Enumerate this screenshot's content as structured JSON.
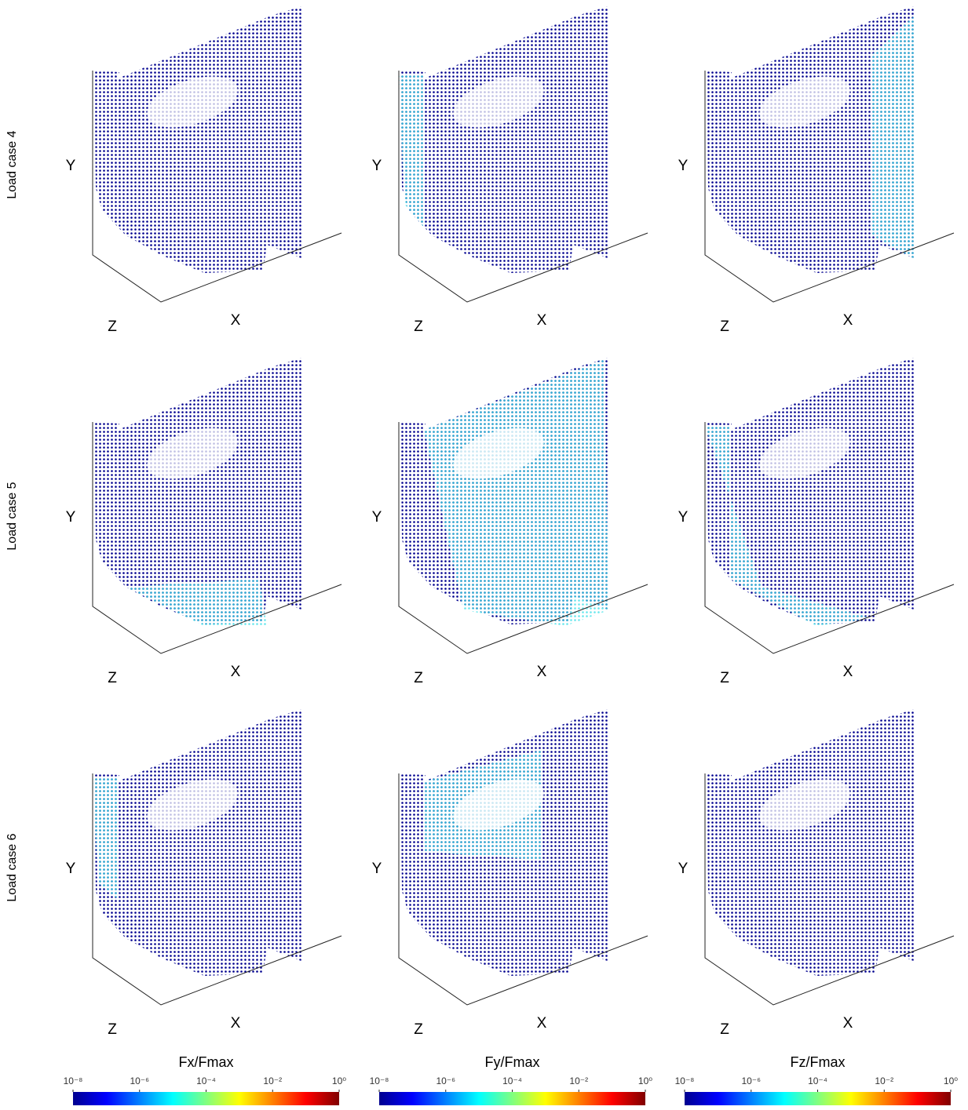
{
  "figure": {
    "rows": [
      "Load case 4",
      "Load case 5",
      "Load case 6"
    ],
    "axis_labels": {
      "x": "X",
      "y": "Y",
      "z": "Z"
    },
    "colorbars": [
      {
        "title": "Fx/Fmax",
        "scale": "log",
        "lim": [
          1e-08,
          1
        ],
        "ticks": [
          {
            "value": 1e-08,
            "label": "10⁻⁸"
          },
          {
            "value": 1e-06,
            "label": "10⁻⁶"
          },
          {
            "value": 0.0001,
            "label": "10⁻⁴"
          },
          {
            "value": 0.01,
            "label": "10⁻²"
          },
          {
            "value": 1,
            "label": "10⁰"
          }
        ]
      },
      {
        "title": "Fy/Fmax",
        "scale": "log",
        "lim": [
          1e-08,
          1
        ],
        "ticks": [
          {
            "value": 1e-08,
            "label": "10⁻⁸"
          },
          {
            "value": 1e-06,
            "label": "10⁻⁶"
          },
          {
            "value": 0.0001,
            "label": "10⁻⁴"
          },
          {
            "value": 0.01,
            "label": "10⁻²"
          },
          {
            "value": 1,
            "label": "10⁰"
          }
        ]
      },
      {
        "title": "Fz/Fmax",
        "scale": "log",
        "lim": [
          1e-08,
          1
        ],
        "ticks": [
          {
            "value": 1e-08,
            "label": "10⁻⁸"
          },
          {
            "value": 1e-06,
            "label": "10⁻⁶"
          },
          {
            "value": 0.0001,
            "label": "10⁻⁴"
          },
          {
            "value": 0.01,
            "label": "10⁻²"
          },
          {
            "value": 1,
            "label": "10⁰"
          }
        ]
      }
    ]
  }
}
